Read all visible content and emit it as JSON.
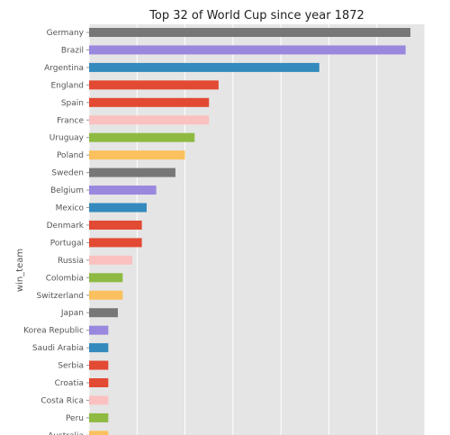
{
  "chart_data": {
    "type": "bar",
    "orientation": "horizontal",
    "title": "Top 32 of World Cup since year 1872",
    "xlabel": "",
    "ylabel": "win_team",
    "categories": [
      "Germany",
      "Brazil",
      "Argentina",
      "England",
      "Spain",
      "France",
      "Uruguay",
      "Poland",
      "Sweden",
      "Belgium",
      "Mexico",
      "Denmark",
      "Portugal",
      "Russia",
      "Colombia",
      "Switzerland",
      "Japan",
      "Korea Republic",
      "Saudi Arabia",
      "Serbia",
      "Croatia",
      "Costa Rica",
      "Peru",
      "Australia"
    ],
    "values": [
      67,
      66,
      48,
      27,
      25,
      25,
      22,
      20,
      18,
      14,
      12,
      11,
      11,
      9,
      7,
      7,
      6,
      4,
      4,
      4,
      4,
      4,
      4,
      4
    ],
    "colors": [
      "#777777",
      "#9988dd",
      "#348abd",
      "#e24a33",
      "#e24a33",
      "#fbc1c1",
      "#8eba42",
      "#fbc15e",
      "#777777",
      "#9988dd",
      "#348abd",
      "#e24a33",
      "#e24a33",
      "#fbc1c1",
      "#8eba42",
      "#fbc15e",
      "#777777",
      "#9988dd",
      "#348abd",
      "#e24a33",
      "#e24a33",
      "#fbc1c1",
      "#8eba42",
      "#fbc15e"
    ],
    "xlim": [
      0,
      70
    ],
    "grid": true,
    "background": "#e5e5e5"
  }
}
